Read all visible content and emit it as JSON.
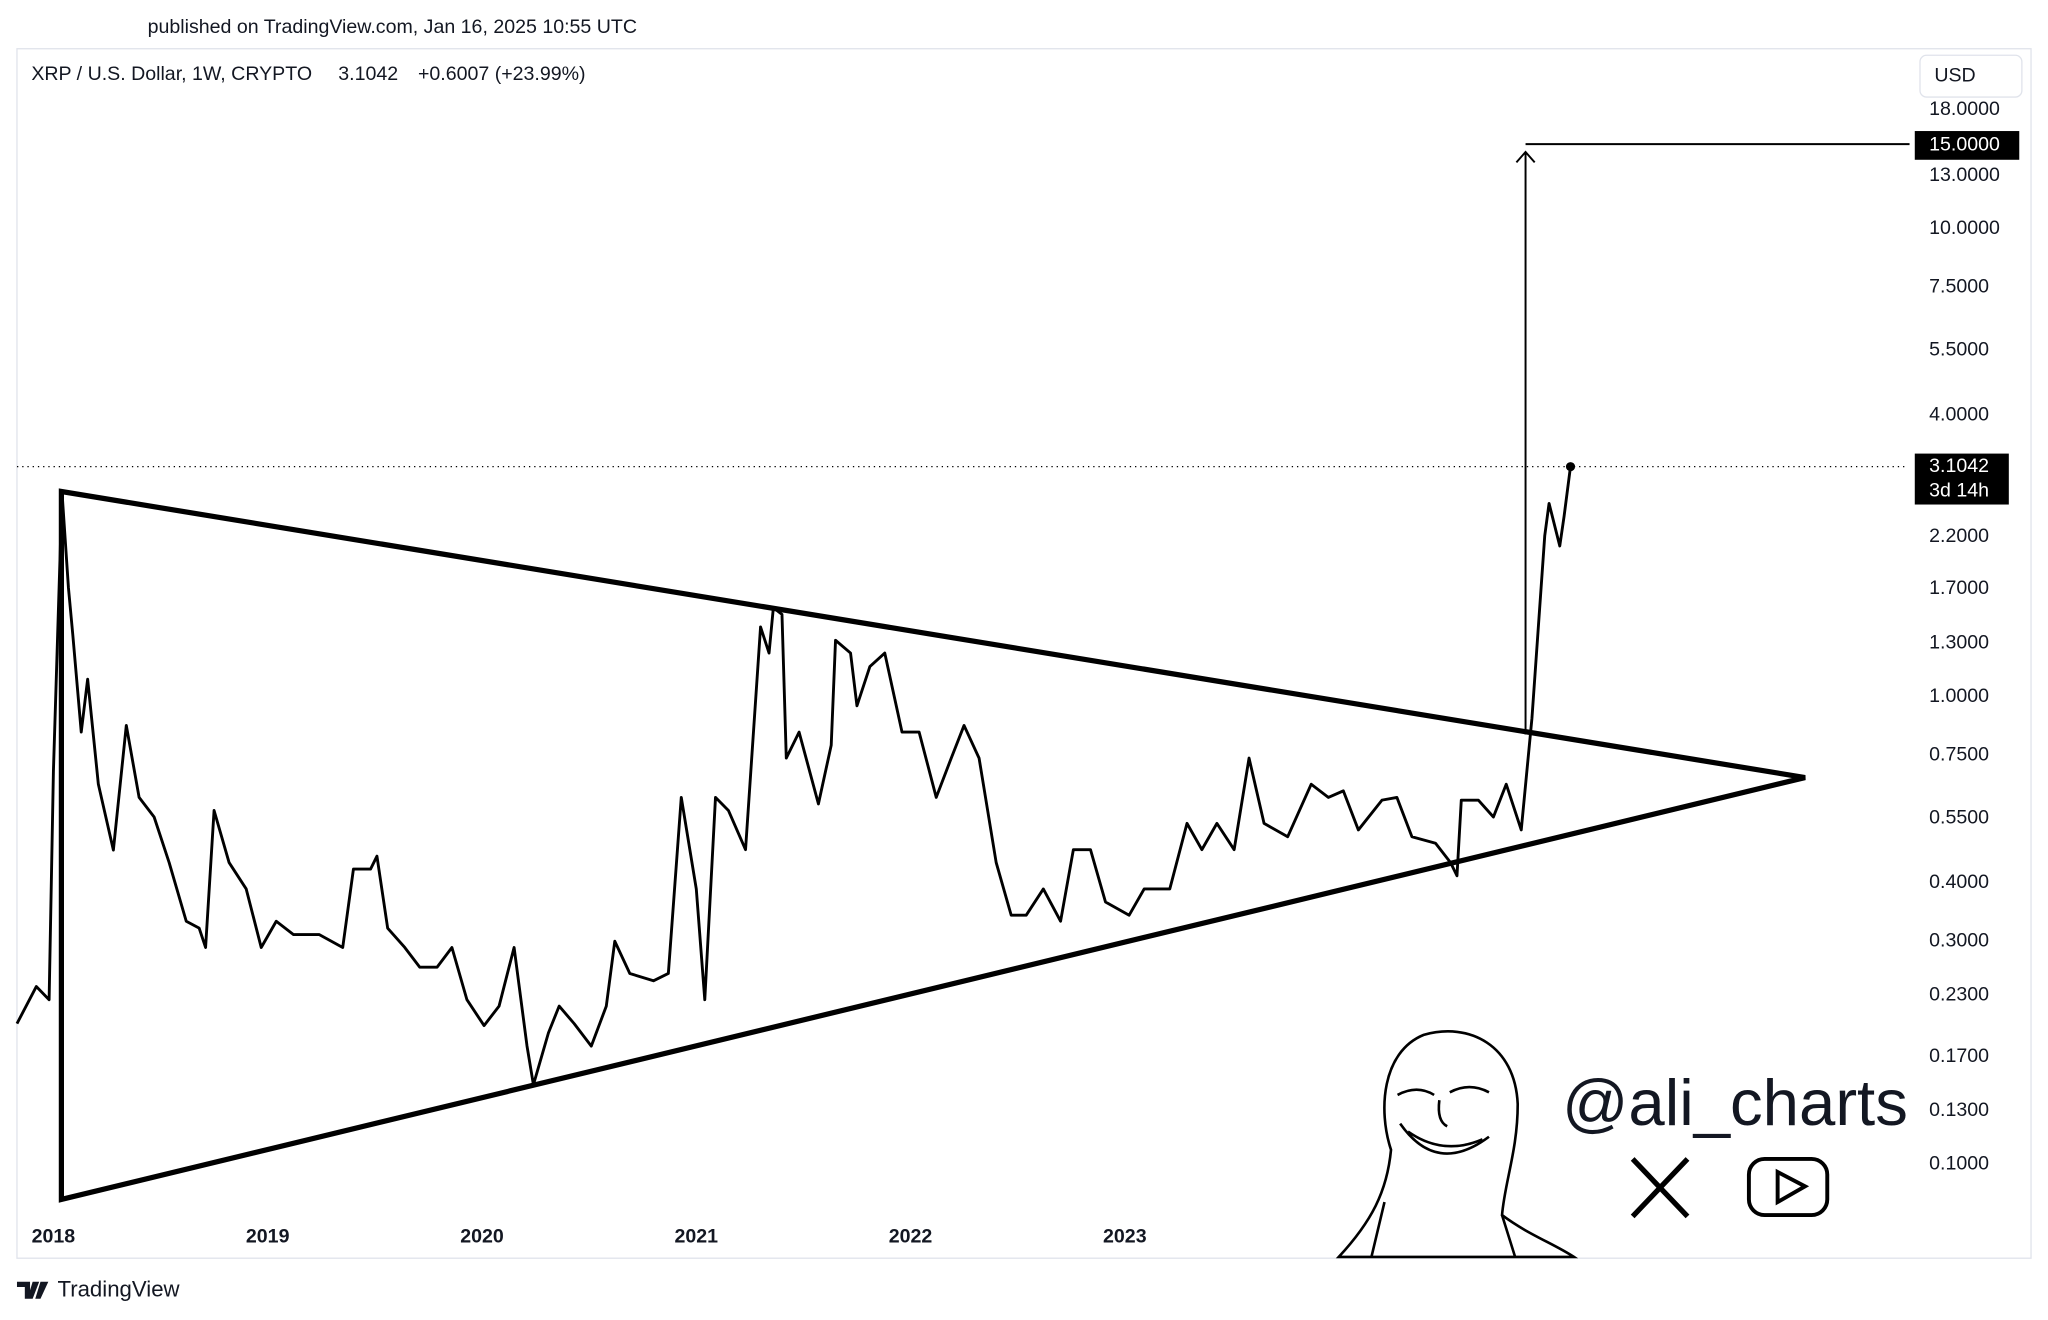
{
  "header": {
    "published": "published on TradingView.com, Jan 16, 2025 10:55 UTC",
    "symbol": "XRP / U.S. Dollar, 1W, CRYPTO",
    "change": "+0.6007 (+23.99%)",
    "currency": "USD",
    "countdown": "3d 14h",
    "brand": "TradingView",
    "handle": "@ali_charts"
  },
  "chart_data": {
    "type": "line",
    "log_scale": true,
    "color": "#000000",
    "x": [
      2017.83,
      2017.92,
      2017.98,
      2018.0,
      2018.04,
      2018.07,
      2018.09,
      2018.13,
      2018.16,
      2018.21,
      2018.28,
      2018.34,
      2018.4,
      2018.47,
      2018.54,
      2018.62,
      2018.68,
      2018.71,
      2018.75,
      2018.82,
      2018.9,
      2018.97,
      2019.04,
      2019.12,
      2019.24,
      2019.35,
      2019.4,
      2019.48,
      2019.51,
      2019.56,
      2019.64,
      2019.71,
      2019.79,
      2019.86,
      2019.93,
      2020.01,
      2020.08,
      2020.15,
      2020.21,
      2020.24,
      2020.31,
      2020.36,
      2020.43,
      2020.51,
      2020.58,
      2020.62,
      2020.69,
      2020.8,
      2020.87,
      2020.93,
      2021.0,
      2021.04,
      2021.09,
      2021.15,
      2021.23,
      2021.3,
      2021.34,
      2021.36,
      2021.4,
      2021.42,
      2021.48,
      2021.57,
      2021.63,
      2021.65,
      2021.72,
      2021.75,
      2021.81,
      2021.88,
      2021.96,
      2022.04,
      2022.12,
      2022.19,
      2022.25,
      2022.32,
      2022.4,
      2022.47,
      2022.54,
      2022.62,
      2022.7,
      2022.76,
      2022.84,
      2022.91,
      2023.02,
      2023.09,
      2023.21,
      2023.29,
      2023.36,
      2023.43,
      2023.51,
      2023.58,
      2023.65,
      2023.76,
      2023.87,
      2023.95,
      2024.02,
      2024.09,
      2024.2,
      2024.27,
      2024.34,
      2024.45,
      2024.52,
      2024.55,
      2024.57,
      2024.65,
      2024.72,
      2024.78,
      2024.85,
      2024.9,
      2024.96,
      2024.98,
      2025.03,
      2025.05,
      2025.08
    ],
    "values": [
      0.2,
      0.24,
      0.225,
      0.693,
      2.73,
      1.71,
      1.36,
      0.84,
      1.09,
      0.65,
      0.47,
      0.868,
      0.609,
      0.553,
      0.442,
      0.331,
      0.32,
      0.291,
      0.571,
      0.442,
      0.388,
      0.291,
      0.331,
      0.31,
      0.31,
      0.291,
      0.428,
      0.428,
      0.456,
      0.32,
      0.291,
      0.264,
      0.264,
      0.291,
      0.225,
      0.198,
      0.218,
      0.291,
      0.179,
      0.148,
      0.191,
      0.218,
      0.2,
      0.179,
      0.218,
      0.3,
      0.256,
      0.247,
      0.256,
      0.609,
      0.388,
      0.225,
      0.609,
      0.571,
      0.471,
      1.41,
      1.24,
      1.55,
      1.5,
      0.739,
      0.84,
      0.59,
      0.788,
      1.32,
      1.24,
      0.956,
      1.16,
      1.24,
      0.84,
      0.84,
      0.609,
      0.739,
      0.868,
      0.739,
      0.442,
      0.341,
      0.341,
      0.388,
      0.331,
      0.471,
      0.471,
      0.364,
      0.341,
      0.388,
      0.388,
      0.536,
      0.471,
      0.536,
      0.471,
      0.739,
      0.536,
      0.502,
      0.65,
      0.609,
      0.629,
      0.519,
      0.601,
      0.609,
      0.502,
      0.486,
      0.442,
      0.414,
      0.601,
      0.601,
      0.553,
      0.65,
      0.519,
      0.9,
      2.21,
      2.59,
      2.1,
      2.43,
      3.1042
    ],
    "xlim": [
      2017.83,
      2026.65
    ],
    "xticks": [
      2018,
      2019,
      2020,
      2021,
      2022,
      2023
    ],
    "ylim": [
      0.063,
      24.3
    ],
    "yticks": [
      {
        "value": 18,
        "label": "18.0000"
      },
      {
        "value": 13,
        "label": "13.0000"
      },
      {
        "value": 10,
        "label": "10.0000"
      },
      {
        "value": 7.5,
        "label": "7.5000"
      },
      {
        "value": 5.5,
        "label": "5.5000"
      },
      {
        "value": 4,
        "label": "4.0000"
      },
      {
        "value": 2.2,
        "label": "2.2000"
      },
      {
        "value": 1.7,
        "label": "1.7000"
      },
      {
        "value": 1.3,
        "label": "1.3000"
      },
      {
        "value": 1,
        "label": "1.0000"
      },
      {
        "value": 0.75,
        "label": "0.7500"
      },
      {
        "value": 0.55,
        "label": "0.5500"
      },
      {
        "value": 0.4,
        "label": "0.4000"
      },
      {
        "value": 0.3,
        "label": "0.3000"
      },
      {
        "value": 0.23,
        "label": "0.2300"
      },
      {
        "value": 0.17,
        "label": "0.1700"
      },
      {
        "value": 0.13,
        "label": "0.1300"
      },
      {
        "value": 0.1,
        "label": "0.1000"
      }
    ],
    "target": {
      "value": 15,
      "label": "15.0000"
    }
  }
}
